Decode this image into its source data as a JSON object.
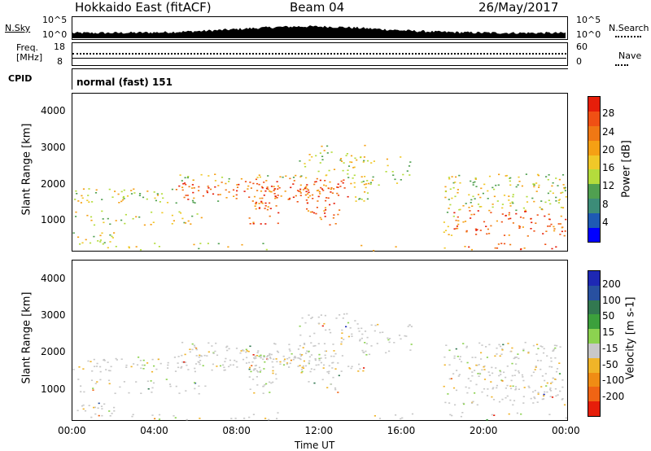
{
  "header": {
    "station": "Hokkaido East (fitACF)",
    "beam": "Beam 04",
    "date": "26/May/2017"
  },
  "nsky": {
    "label": "N.Sky",
    "top_tick": "10^5",
    "bottom_tick": "10^0"
  },
  "nsearch": {
    "label": "N.Search",
    "top_tick": "10^5",
    "bottom_tick": "10^0"
  },
  "freq": {
    "label_line1": "Freq.",
    "label_line2": "[MHz]",
    "top_tick": "18",
    "bottom_tick": "8"
  },
  "nave": {
    "label": "Nave",
    "top_tick": "60",
    "bottom_tick": "0"
  },
  "cpid": {
    "label": "CPID",
    "value": "normal (fast) 151"
  },
  "chart_data": [
    {
      "type": "heatmap",
      "name": "power",
      "ylabel": "Slant Range [km]",
      "xlabel": "Time UT",
      "x_ticks": [
        "00:00",
        "04:00",
        "08:00",
        "12:00",
        "16:00",
        "20:00",
        "00:00"
      ],
      "y_ticks": [
        1000,
        2000,
        3000,
        4000
      ],
      "ylim": [
        200,
        4500
      ],
      "colorbar": {
        "label": "Power [dB]",
        "ticks": [
          "4",
          "8",
          "12",
          "16",
          "20",
          "24",
          "28"
        ],
        "colors": [
          "#0000ff",
          "#1e5ab4",
          "#3c8c78",
          "#50a050",
          "#b4dc3c",
          "#f0c828",
          "#f5a014",
          "#f07814",
          "#f05014",
          "#e61e0a"
        ]
      }
    },
    {
      "type": "heatmap",
      "name": "velocity",
      "ylabel": "Slant Range [km]",
      "xlabel": "Time UT",
      "x_ticks": [
        "00:00",
        "04:00",
        "08:00",
        "12:00",
        "16:00",
        "20:00",
        "00:00"
      ],
      "y_ticks": [
        1000,
        2000,
        3000,
        4000
      ],
      "ylim": [
        200,
        4500
      ],
      "colorbar": {
        "label": "Velocity [m s-1]",
        "ticks": [
          "200",
          "100",
          "50",
          "15",
          "-15",
          "-50",
          "-100",
          "-200"
        ],
        "colors": [
          "#1e28b4",
          "#2850a0",
          "#327850",
          "#3ca03c",
          "#8cd250",
          "#c8c8c8",
          "#f0b428",
          "#f08c14",
          "#f06414",
          "#e61e0a"
        ]
      }
    }
  ]
}
